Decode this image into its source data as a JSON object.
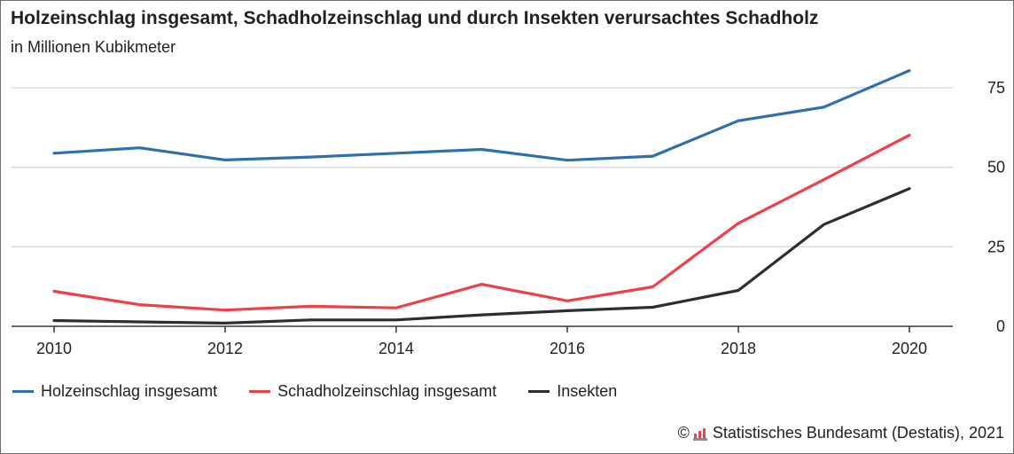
{
  "chart_data": {
    "type": "line",
    "title": "Holzeinschlag insgesamt, Schadholzeinschlag und durch Insekten verursachtes Schadholz",
    "subtitle": "in Millionen Kubikmeter",
    "x": [
      2010,
      2011,
      2012,
      2013,
      2014,
      2015,
      2016,
      2017,
      2018,
      2019,
      2020
    ],
    "x_ticks": [
      "2010",
      "2012",
      "2014",
      "2016",
      "2018",
      "2020"
    ],
    "y_ticks": [
      "0",
      "25",
      "50",
      "75"
    ],
    "xlim": [
      2010,
      2020
    ],
    "ylim": [
      0,
      80
    ],
    "grid": "horizontal",
    "legend_position": "bottom-left",
    "series": [
      {
        "name": "Holzeinschlag insgesamt",
        "color": "#2e6fae",
        "values": [
          54.4,
          56.1,
          52.3,
          53.2,
          54.4,
          55.6,
          52.2,
          53.5,
          64.6,
          68.9,
          80.4
        ]
      },
      {
        "name": "Schadholzeinschlag insgesamt",
        "color": "#ef4048",
        "values": [
          11.0,
          6.8,
          5.1,
          6.3,
          5.8,
          13.2,
          8.0,
          12.4,
          32.4,
          46.1,
          60.1
        ]
      },
      {
        "name": "Insekten",
        "color": "#2b2f35",
        "values": [
          1.8,
          1.4,
          1.0,
          2.0,
          2.0,
          3.6,
          4.9,
          6.0,
          11.3,
          32.0,
          43.3
        ]
      }
    ]
  },
  "source": {
    "copyright_symbol": "©",
    "text": "Statistisches Bundesamt (Destatis), 2021"
  }
}
